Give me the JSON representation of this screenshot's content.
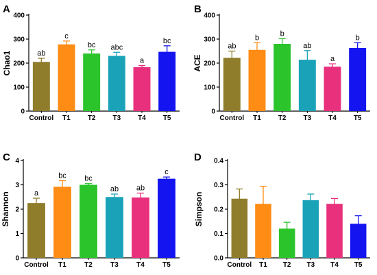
{
  "figure": {
    "series_colors": [
      "#8f7d2c",
      "#ff8c14",
      "#2bc42b",
      "#1aa3b8",
      "#e8307d",
      "#1414f0"
    ]
  },
  "chart_data": [
    {
      "panel": "A",
      "type": "bar",
      "categories": [
        "Control",
        "T1",
        "T2",
        "T3",
        "T4",
        "T5"
      ],
      "values": [
        205,
        278,
        240,
        230,
        183,
        247
      ],
      "errors": [
        15,
        14,
        15,
        15,
        7,
        25
      ],
      "labels": [
        "ab",
        "c",
        "bc",
        "abc",
        "a",
        "bc"
      ],
      "ylabel": "Chao1",
      "ylim": [
        0,
        400
      ],
      "yticks": [
        "0",
        "100",
        "200",
        "300",
        "400"
      ],
      "ytick_values": [
        0,
        100,
        200,
        300,
        400
      ]
    },
    {
      "panel": "B",
      "type": "bar",
      "categories": [
        "Control",
        "T1",
        "T2",
        "T3",
        "T4",
        "T5"
      ],
      "values": [
        222,
        255,
        280,
        214,
        185,
        263
      ],
      "errors": [
        28,
        30,
        22,
        38,
        12,
        22
      ],
      "labels": [
        "ab",
        "b",
        "b",
        "ab",
        "a",
        "b"
      ],
      "ylabel": "ACE",
      "ylim": [
        0,
        400
      ],
      "yticks": [
        "0",
        "100",
        "200",
        "300",
        "400"
      ],
      "ytick_values": [
        0,
        100,
        200,
        300,
        400
      ]
    },
    {
      "panel": "C",
      "type": "bar",
      "categories": [
        "Control",
        "T1",
        "T2",
        "T3",
        "T4",
        "T5"
      ],
      "values": [
        2.25,
        2.92,
        3.0,
        2.5,
        2.48,
        3.25
      ],
      "errors": [
        0.2,
        0.25,
        0.05,
        0.12,
        0.18,
        0.07
      ],
      "labels": [
        "a",
        "bc",
        "bc",
        "ab",
        "ab",
        "c"
      ],
      "ylabel": "Shannon",
      "ylim": [
        0,
        4
      ],
      "yticks": [
        "0",
        "1",
        "2",
        "3",
        "4"
      ],
      "ytick_values": [
        0,
        1,
        2,
        3,
        4
      ]
    },
    {
      "panel": "D",
      "type": "bar",
      "categories": [
        "Control",
        "T1",
        "T2",
        "T3",
        "T4",
        "T5"
      ],
      "values": [
        0.243,
        0.222,
        0.12,
        0.237,
        0.222,
        0.14
      ],
      "errors": [
        0.04,
        0.072,
        0.026,
        0.025,
        0.022,
        0.033
      ],
      "labels": [
        "",
        "",
        "",
        "",
        "",
        ""
      ],
      "ylabel": "Simpson",
      "ylim": [
        0,
        0.4
      ],
      "yticks": [
        "0.0",
        "0.1",
        "0.2",
        "0.3",
        "0.4"
      ],
      "ytick_values": [
        0,
        0.1,
        0.2,
        0.3,
        0.4
      ]
    }
  ]
}
